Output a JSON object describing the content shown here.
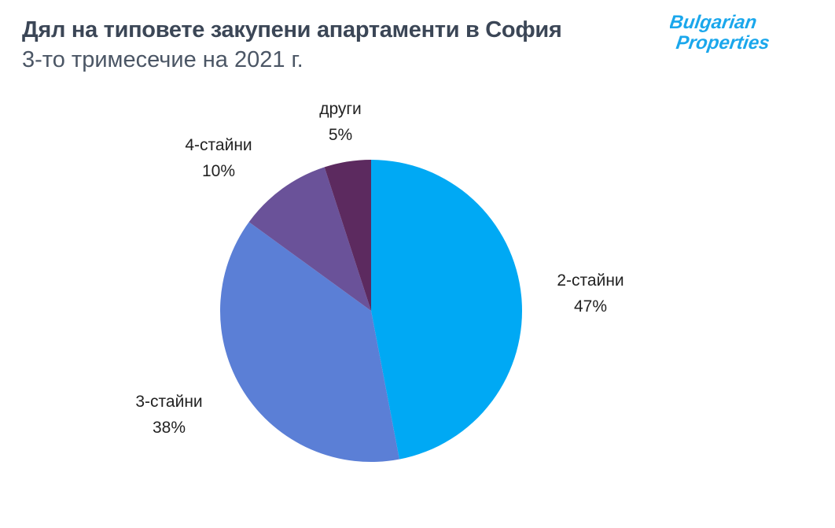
{
  "header": {
    "title": "Дял на типовете закупени апартаменти в София",
    "subtitle": "3-то тримесечие на 2021 г.",
    "logo_text": [
      "Bulgarian",
      "Properties"
    ]
  },
  "chart_data": {
    "type": "pie",
    "title": "Дял на типовете закупени апартаменти в София",
    "subtitle": "3-то тримесечие на 2021 г.",
    "start_angle": "top",
    "direction": "clockwise",
    "slices": [
      {
        "label": "2-стайни",
        "value": 47,
        "value_label": "47%",
        "color": "#00a9f4"
      },
      {
        "label": "3-стайни",
        "value": 38,
        "value_label": "38%",
        "color": "#5b7fd6"
      },
      {
        "label": "4-стайни",
        "value": 10,
        "value_label": "10%",
        "color": "#6a5299"
      },
      {
        "label": "други",
        "value": 5,
        "value_label": "5%",
        "color": "#5c2a5f"
      }
    ]
  }
}
